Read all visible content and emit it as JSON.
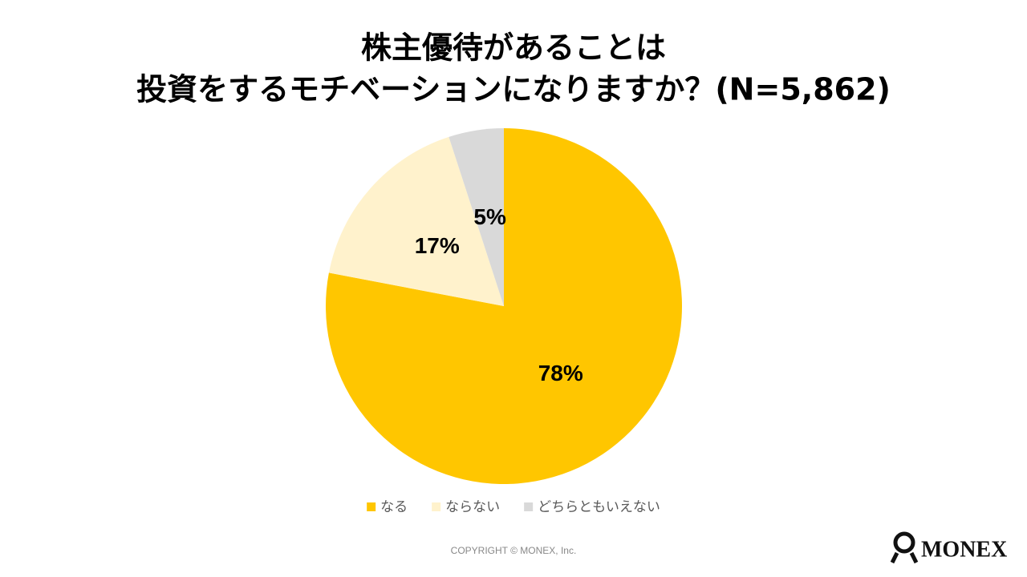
{
  "chart_data": {
    "type": "pie",
    "title": [
      "株主優待があることは",
      "投資をするモチベーションになりますか？(N=5,862)"
    ],
    "categories": [
      "なる",
      "ならない",
      "どちらともいえない"
    ],
    "values": [
      78,
      17,
      5
    ],
    "value_labels": [
      "78%",
      "17%",
      "5%"
    ],
    "colors": [
      "#FFC600",
      "#FFF2CC",
      "#D9D9D9"
    ],
    "legend": "bottom"
  },
  "footer": {
    "copyright": "COPYRIGHT © MONEX, Inc.",
    "logo": "MONEX"
  }
}
